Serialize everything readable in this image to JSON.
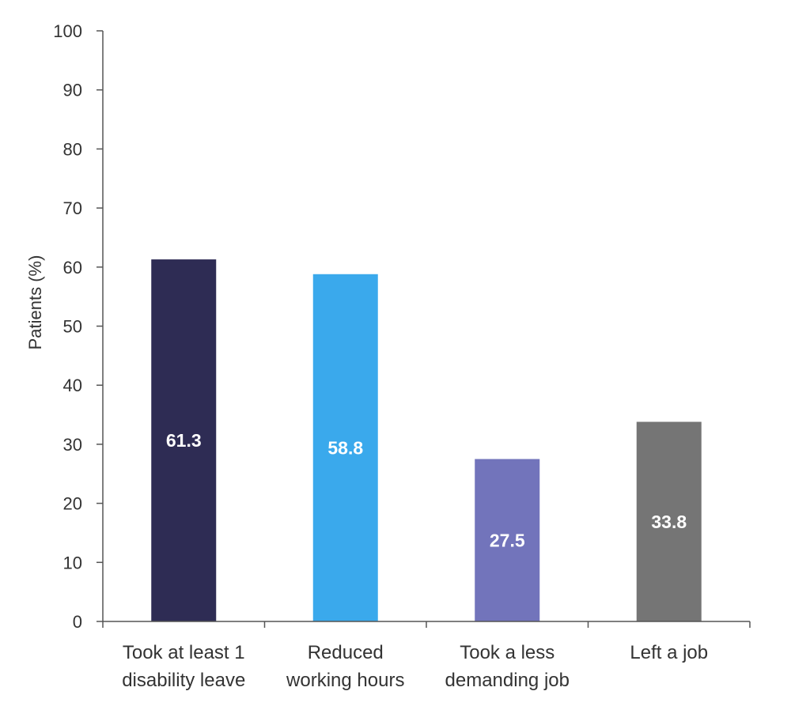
{
  "chart_data": {
    "type": "bar",
    "title": "",
    "xlabel": "",
    "ylabel": "Patients (%)",
    "ylim": [
      0,
      100
    ],
    "yticks": [
      0,
      10,
      20,
      30,
      40,
      50,
      60,
      70,
      80,
      90,
      100
    ],
    "grid": false,
    "categories": [
      [
        "Took at least 1",
        "disability leave"
      ],
      [
        "Reduced",
        "working hours"
      ],
      [
        "Took a less",
        "demanding job"
      ],
      [
        "Left a job"
      ]
    ],
    "values": [
      61.3,
      58.8,
      27.5,
      33.8
    ],
    "data_labels": [
      "61.3",
      "58.8",
      "27.5",
      "33.8"
    ],
    "colors": [
      "#2e2c54",
      "#3aa9ec",
      "#7274bb",
      "#757575"
    ]
  }
}
